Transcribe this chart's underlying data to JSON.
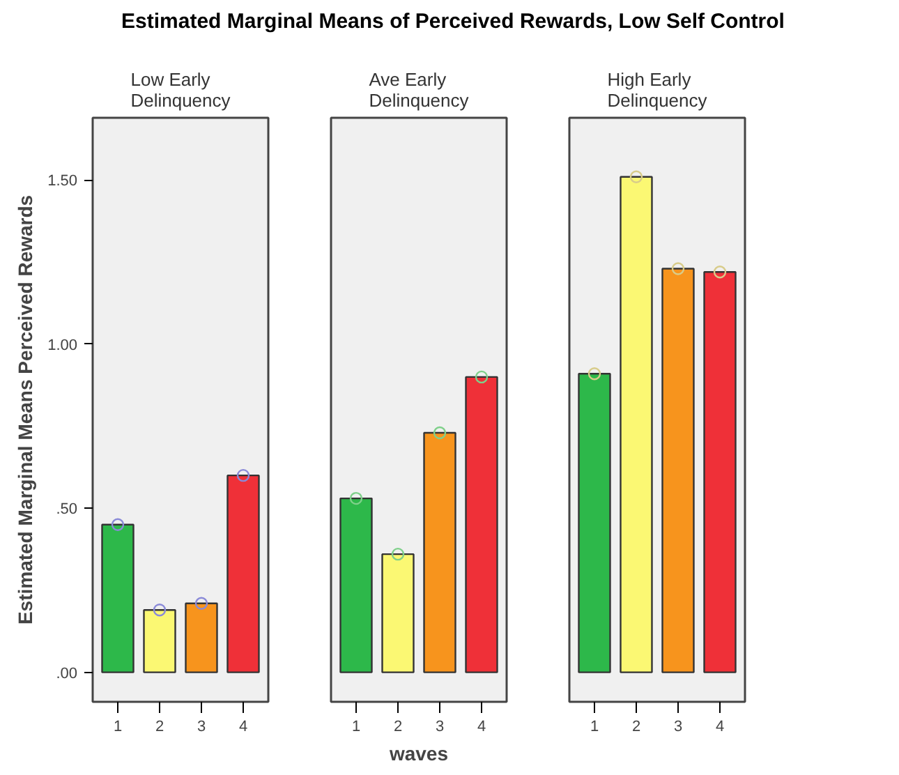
{
  "chart_data": [
    {
      "type": "bar",
      "title": "Estimated Marginal Means of Perceived Rewards, Low Self Control",
      "subtitle": "Low Early Delinquency",
      "ylabel": "Estimated Marginal Means Perceived Rewards",
      "categories": [
        "1",
        "2",
        "3",
        "4"
      ],
      "ylim": [
        -0.09,
        1.69
      ],
      "yticks": [
        {
          "value": 0,
          "label": ".00"
        },
        {
          "value": 0.5,
          "label": ".50"
        },
        {
          "value": 1,
          "label": "1.00"
        },
        {
          "value": 1.5,
          "label": "1.50"
        }
      ],
      "grid": false,
      "marker": "circle",
      "series": [
        {
          "colors": [
            "#2db84a",
            "#fbf873",
            "#f7941d",
            "#ef3038"
          ],
          "values": [
            0.45,
            0.19,
            0.21,
            0.6
          ]
        },
        {
          "type": "scatter",
          "color": "#8a8ad8",
          "x": [
            "1",
            "2",
            "3",
            "4"
          ],
          "values": [
            0.45,
            0.19,
            0.21,
            0.6
          ]
        }
      ]
    },
    {
      "type": "bar",
      "subtitle": "Ave Early Delinquency",
      "xlabel": "waves",
      "categories": [
        "1",
        "2",
        "3",
        "4"
      ],
      "ylim": [
        -0.09,
        1.69
      ],
      "tick_labels": "x",
      "grid": false,
      "marker": "circle",
      "series": [
        {
          "colors": [
            "#2db84a",
            "#fbf873",
            "#f7941d",
            "#ef3038"
          ],
          "values": [
            0.53,
            0.36,
            0.73,
            0.9
          ]
        },
        {
          "type": "scatter",
          "color": "#7fd08a",
          "x": [
            "1",
            "2",
            "3",
            "4"
          ],
          "values": [
            0.53,
            0.36,
            0.73,
            0.9
          ]
        }
      ]
    },
    {
      "type": "bar",
      "subtitle": "High Early Delinquency",
      "categories": [
        "1",
        "2",
        "3",
        "4"
      ],
      "ylim": [
        -0.09,
        1.69
      ],
      "tick_labels": "x",
      "grid": false,
      "marker": "circle",
      "series": [
        {
          "colors": [
            "#2db84a",
            "#fbf873",
            "#f7941d",
            "#ef3038"
          ],
          "values": [
            0.91,
            1.51,
            1.23,
            1.22
          ]
        },
        {
          "type": "scatter",
          "color": "#d8cc8a",
          "x": [
            "1",
            "2",
            "3",
            "4"
          ],
          "values": [
            0.91,
            1.51,
            1.23,
            1.22
          ]
        }
      ]
    }
  ]
}
